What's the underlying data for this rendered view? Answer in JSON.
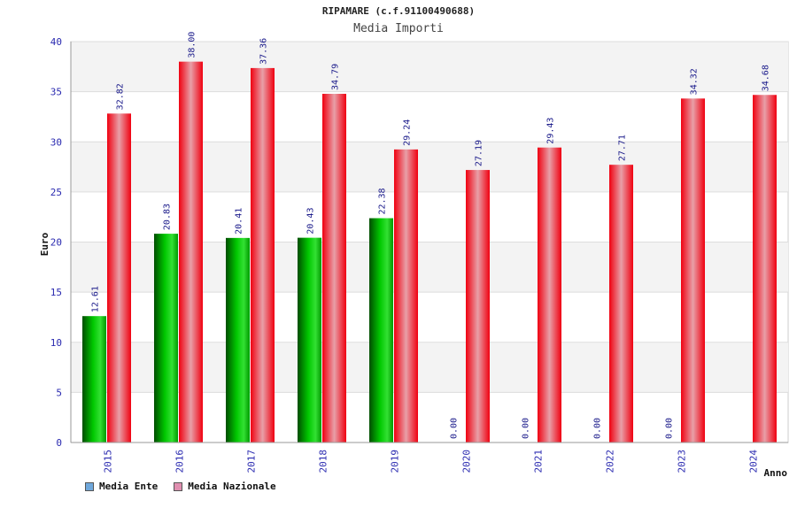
{
  "header": {
    "title": "RIPAMARE (c.f.91100490688)",
    "subtitle": "Media Importi"
  },
  "legend": {
    "items": [
      {
        "label": "Media Ente",
        "color": "#6fa8dc"
      },
      {
        "label": "Media Nazionale",
        "color": "#e08fb0"
      }
    ]
  },
  "colors": {
    "ente": "#00b800",
    "nazionale": "#ee1122",
    "axis_text": "#2a2ab0"
  },
  "chart_data": {
    "type": "bar",
    "title": "RIPAMARE (c.f.91100490688)",
    "subtitle": "Media Importi",
    "xlabel": "Anno",
    "ylabel": "Euro",
    "ylim": [
      0,
      40
    ],
    "yticks": [
      0,
      5,
      10,
      15,
      20,
      25,
      30,
      35,
      40
    ],
    "grid": true,
    "legend_position": "bottom-left",
    "categories": [
      "2015",
      "2016",
      "2017",
      "2018",
      "2019",
      "2020",
      "2021",
      "2022",
      "2023",
      "2024"
    ],
    "series": [
      {
        "name": "Media Ente",
        "values": [
          12.61,
          20.83,
          20.41,
          20.43,
          22.38,
          0.0,
          0.0,
          0.0,
          0.0,
          null
        ],
        "labels": [
          "12.61",
          "20.83",
          "20.41",
          "20.43",
          "22.38",
          "0.00",
          "0.00",
          "0.00",
          "0.00",
          ""
        ]
      },
      {
        "name": "Media Nazionale",
        "values": [
          32.82,
          38.0,
          37.36,
          34.79,
          29.24,
          27.19,
          29.43,
          27.71,
          34.32,
          34.68
        ],
        "labels": [
          "32.82",
          "38.00",
          "37.36",
          "34.79",
          "29.24",
          "27.19",
          "29.43",
          "27.71",
          "34.32",
          "34.68"
        ]
      }
    ]
  }
}
